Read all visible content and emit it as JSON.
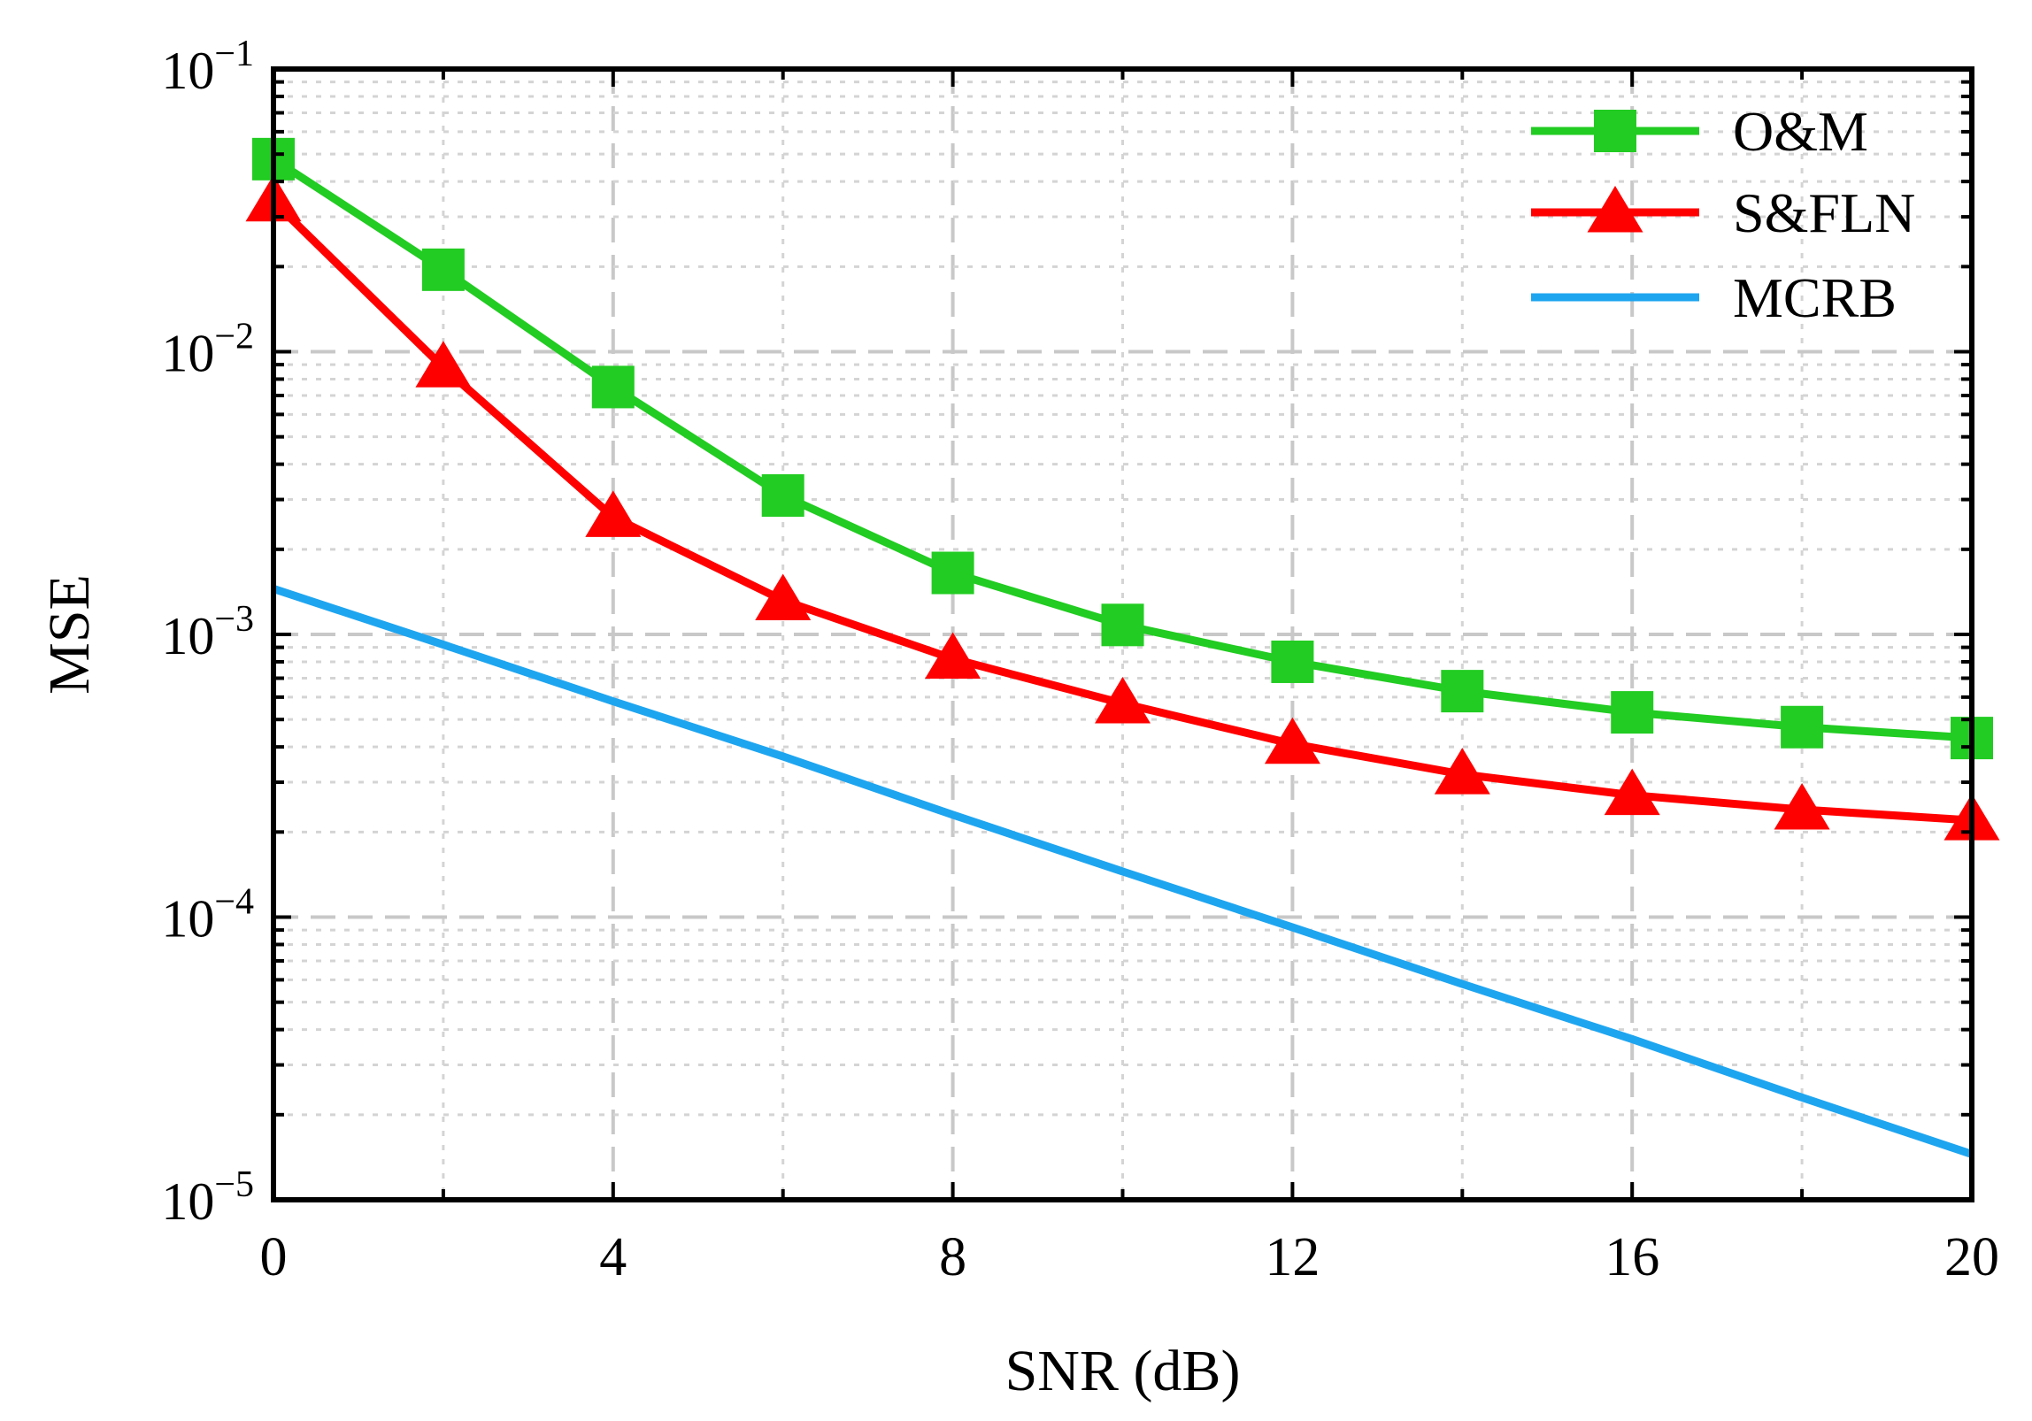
{
  "chart_data": {
    "type": "line",
    "title": "",
    "xlabel": "SNR (dB)",
    "ylabel": "MSE",
    "xlim": [
      0,
      20
    ],
    "ylim": [
      1e-05,
      0.1
    ],
    "yscale": "log",
    "grid": true,
    "legend_position": "top-right",
    "x_ticks": [
      0,
      4,
      8,
      12,
      16,
      20
    ],
    "x_tick_labels": [
      "0",
      "4",
      "8",
      "12",
      "16",
      "20"
    ],
    "y_ticks": [
      1e-05,
      0.0001,
      0.001,
      0.01,
      0.1
    ],
    "y_tick_labels": [
      {
        "base": "10",
        "exp": "−5"
      },
      {
        "base": "10",
        "exp": "−4"
      },
      {
        "base": "10",
        "exp": "−3"
      },
      {
        "base": "10",
        "exp": "−2"
      },
      {
        "base": "10",
        "exp": "−1"
      }
    ],
    "series": [
      {
        "name": "O&M",
        "color": "#22cc22",
        "marker": "square",
        "x": [
          0,
          2,
          4,
          6,
          8,
          10,
          12,
          14,
          16,
          18,
          20
        ],
        "y": [
          0.048,
          0.0195,
          0.0075,
          0.0031,
          0.00165,
          0.00108,
          0.0008,
          0.00063,
          0.00053,
          0.00047,
          0.00043
        ]
      },
      {
        "name": "S&FLN",
        "color": "#ff0000",
        "marker": "triangle",
        "x": [
          0,
          2,
          4,
          6,
          8,
          10,
          12,
          14,
          16,
          18,
          20
        ],
        "y": [
          0.034,
          0.0088,
          0.0026,
          0.00132,
          0.00082,
          0.00057,
          0.00041,
          0.00032,
          0.00027,
          0.00024,
          0.00022
        ]
      },
      {
        "name": "MCRB",
        "color": "#1ea5f0",
        "marker": "none",
        "x": [
          0,
          2,
          4,
          6,
          8,
          10,
          12,
          14,
          16,
          18,
          20
        ],
        "y": [
          0.00145,
          0.00092,
          0.00058,
          0.00037,
          0.00023,
          0.000145,
          9.2e-05,
          5.8e-05,
          3.7e-05,
          2.3e-05,
          1.45e-05
        ]
      }
    ]
  }
}
